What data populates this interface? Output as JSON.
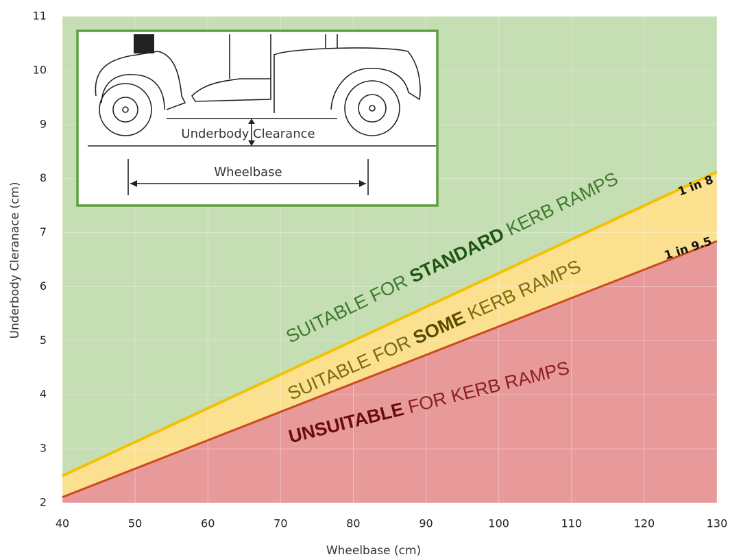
{
  "chart_data": {
    "type": "area",
    "xlabel": "Wheelbase (cm)",
    "ylabel": "Underbody Cleranace (cm)",
    "x": [
      40,
      130
    ],
    "series": [
      {
        "name": "1 in 8",
        "color": "#f2c200",
        "area_color": "#c6deb3",
        "values": [
          2.5,
          8.125
        ]
      },
      {
        "name": "1 in 9.5",
        "color": "#cc4a1e",
        "area_color": "#fbe08f",
        "values": [
          2.105,
          6.842
        ]
      }
    ],
    "below_color": "#e89a9a",
    "xlim": [
      40,
      130
    ],
    "xticks": [
      40,
      50,
      60,
      70,
      80,
      90,
      100,
      110,
      120,
      130
    ],
    "ylim": [
      2,
      11
    ],
    "yticks": [
      2,
      3,
      4,
      5,
      6,
      7,
      8,
      9,
      10,
      11
    ],
    "grid": true,
    "annotations": [
      {
        "parts": [
          "SUITABLE FOR ",
          "STANDARD",
          " KERB RAMPS"
        ]
      },
      {
        "parts": [
          "SUITABLE FOR ",
          "SOME",
          " KERB RAMPS"
        ]
      },
      {
        "parts": [
          "UNSUITABLE",
          " FOR KERB RAMPS"
        ]
      }
    ],
    "inset": {
      "clearance_label": "Underbody Clearance",
      "wheelbase_label": "Wheelbase"
    }
  }
}
